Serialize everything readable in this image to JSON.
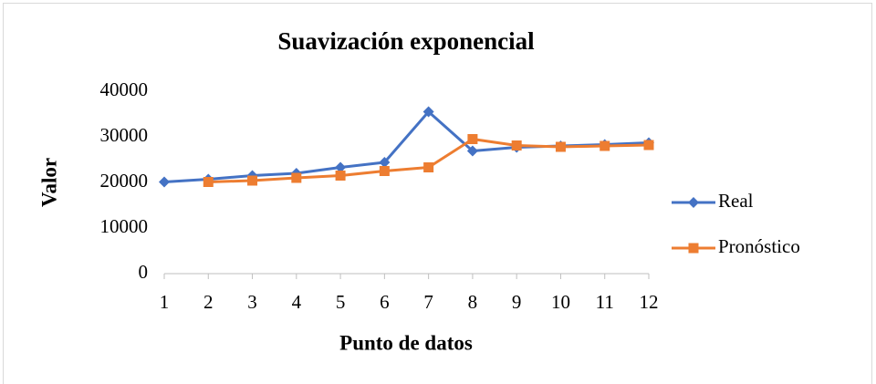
{
  "chart_data": {
    "type": "line",
    "title": "Suavización exponencial",
    "x_label": "Punto de datos",
    "y_label": "Valor",
    "categories": [
      "1",
      "2",
      "3",
      "4",
      "5",
      "6",
      "7",
      "8",
      "9",
      "10",
      "11",
      "12"
    ],
    "series": [
      {
        "name": "Real",
        "color": "#4472c4",
        "marker": "diamond",
        "values": [
          20100,
          20700,
          21500,
          22000,
          23300,
          24400,
          35500,
          26900,
          27700,
          28000,
          28300,
          28700
        ]
      },
      {
        "name": "Pronóstico",
        "color": "#ed7d31",
        "marker": "square",
        "values": [
          null,
          20100,
          20400,
          21000,
          21500,
          22500,
          23300,
          29500,
          28100,
          27800,
          28000,
          28200
        ]
      }
    ],
    "ylim": [
      0,
      40000
    ],
    "yticks": [
      0,
      10000,
      20000,
      30000,
      40000
    ],
    "grid": false,
    "legend": "right"
  }
}
